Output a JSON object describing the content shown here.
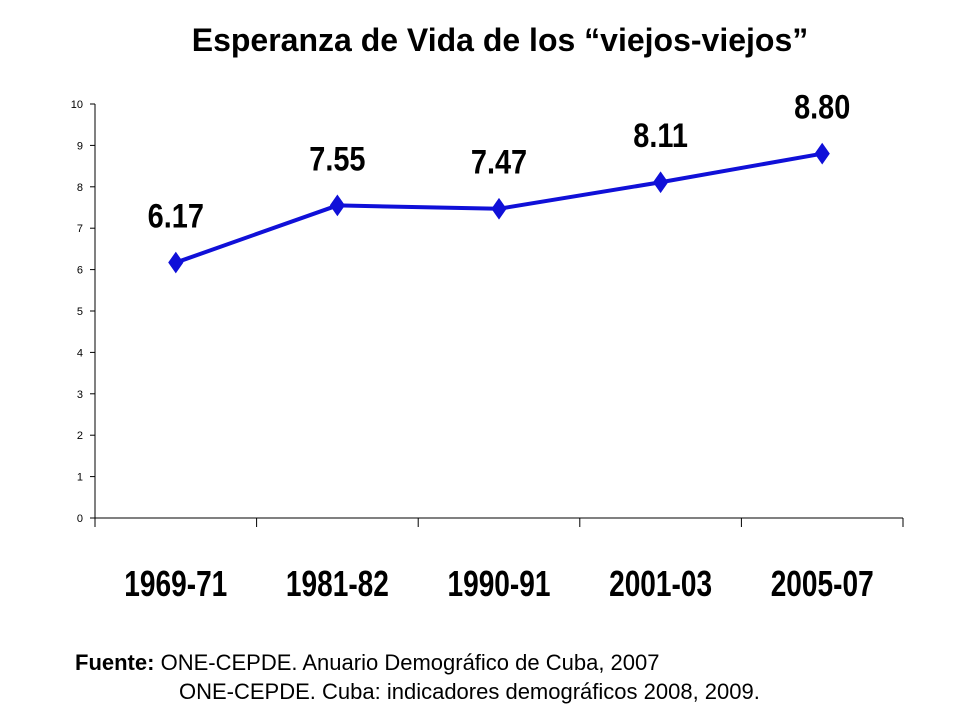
{
  "chart_data": {
    "type": "line",
    "title": "Esperanza de Vida de los “viejos-viejos”",
    "categories": [
      "1969-71",
      "1981-82",
      "1990-91",
      "2001-03",
      "2005-07"
    ],
    "series": [
      {
        "values": [
          6.17,
          7.55,
          7.47,
          8.11,
          8.8
        ],
        "labels": [
          "6.17",
          "7.55",
          "7.47",
          "8.11",
          "8.80"
        ]
      }
    ],
    "ylim": [
      0,
      10
    ],
    "yticks": [
      "0",
      "1",
      "2",
      "3",
      "4",
      "5",
      "6",
      "7",
      "8",
      "9",
      "10"
    ],
    "grid": false,
    "legend": "none",
    "line_color": "#1010d8"
  },
  "source": {
    "label": "Fuente:",
    "line1": "ONE-CEPDE. Anuario Demográfico de Cuba, 2007",
    "line2": "ONE-CEPDE. Cuba: indicadores demográficos 2008, 2009."
  }
}
